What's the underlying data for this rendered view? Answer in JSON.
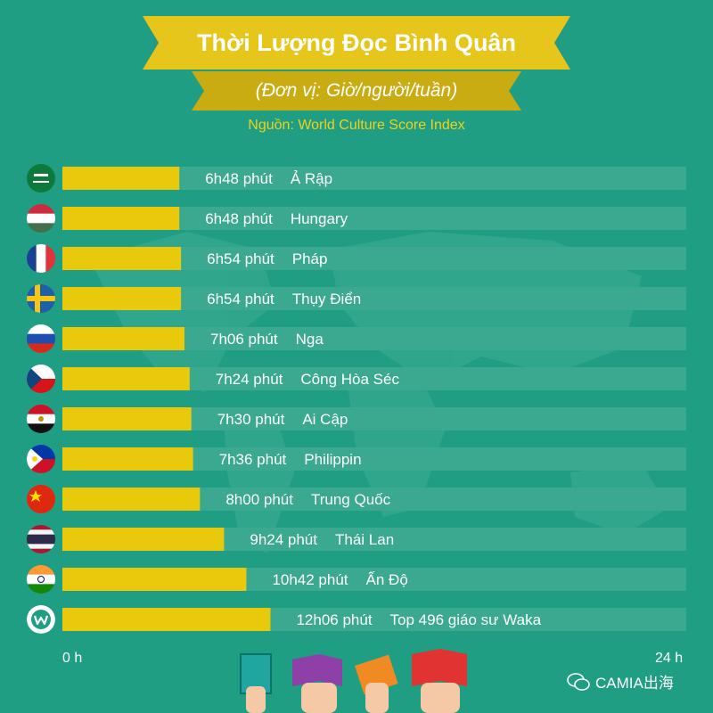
{
  "header": {
    "title": "Thời Lượng Đọc Bình Quân",
    "subtitle": "(Đơn vị: Giờ/người/tuần)",
    "source": "Nguồn: World Culture Score Index"
  },
  "axis": {
    "min_label": "0 h",
    "max_label": "24 h"
  },
  "watermark": "CAMIA出海",
  "colors": {
    "background": "#1f9e83",
    "bar": "#e9c90c",
    "track": "#3aa98f",
    "ribbon_top": "#e6c61b",
    "ribbon_bottom": "#c9ab12",
    "source_text": "#f0d21a"
  },
  "chart_data": {
    "type": "bar",
    "orientation": "horizontal",
    "xlim": [
      0,
      24
    ],
    "categories": [
      "Ả Rập",
      "Hungary",
      "Pháp",
      "Thụy Điển",
      "Nga",
      "Công Hòa Séc",
      "Ai Cập",
      "Philippin",
      "Trung Quốc",
      "Thái Lan",
      "Ấn Độ",
      "Top 496 giáo sư Waka"
    ],
    "values": [
      6.8,
      6.8,
      6.9,
      6.9,
      7.1,
      7.4,
      7.5,
      7.6,
      8.0,
      9.4,
      10.7,
      12.1
    ],
    "value_labels": [
      "6h48 phút",
      "6h48 phút",
      "6h54 phút",
      "6h54 phút",
      "7h06 phút",
      "7h24 phút",
      "7h30 phút",
      "7h36 phút",
      "8h00 phút",
      "9h24 phút",
      "10h42 phút",
      "12h06 phút"
    ],
    "icons": [
      "flag-saudi-arabia-icon",
      "flag-hungary-icon",
      "flag-france-icon",
      "flag-sweden-icon",
      "flag-russia-icon",
      "flag-czech-icon",
      "flag-egypt-icon",
      "flag-philippines-icon",
      "flag-china-icon",
      "flag-thailand-icon",
      "flag-india-icon",
      "waka-logo-icon"
    ]
  }
}
